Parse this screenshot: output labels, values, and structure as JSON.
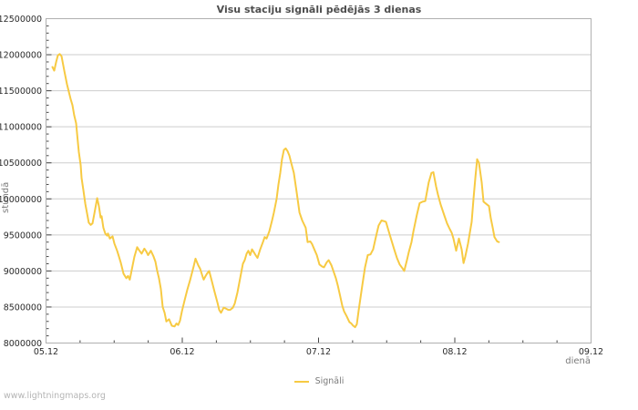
{
  "title": "Visu staciju signāli pēdējās 3 dienas",
  "watermark": "www.lightningmaps.org",
  "legend": {
    "label": "Signāli"
  },
  "axes": {
    "x_label": "dienā",
    "y_label": "stundā"
  },
  "colors": {
    "line": "#F7CA43",
    "grid": "#cdcdcd",
    "border": "#b0b0b0",
    "tick": "#444444",
    "tick_label": "#2b2b2b",
    "title": "#4d4d4d",
    "axis_unit": "#7a7a7a",
    "legend_text": "#7a7a7a",
    "watermark": "#b5b5b5",
    "background": "#ffffff"
  },
  "chart_data": {
    "type": "line",
    "title": "Visu staciju signāli pēdējās 3 dienas",
    "xlabel": "dienā",
    "ylabel": "stundā",
    "grid": "horizontal-only",
    "legend_position": "bottom-center",
    "xlim": [
      0,
      4
    ],
    "ylim": [
      8000000,
      12500000
    ],
    "y_major_step": 500000,
    "y_minor_step": 100000,
    "x_minor_step_days": 0.25,
    "x_major_ticks": [
      {
        "t": 0,
        "label": "05.12"
      },
      {
        "t": 1,
        "label": "06.12"
      },
      {
        "t": 2,
        "label": "07.12"
      },
      {
        "t": 3,
        "label": "08.12"
      },
      {
        "t": 4,
        "label": "09.12"
      }
    ],
    "y_tick_labels": [
      "8000000",
      "8500000",
      "9000000",
      "9500000",
      "10000000",
      "10500000",
      "11000000",
      "11500000",
      "12000000",
      "12500000"
    ],
    "series": [
      {
        "name": "Signāli",
        "color": "#F7CA43",
        "x_unit": "days after 05.12",
        "value_unit": "millions",
        "points": [
          [
            0.047,
            11.83
          ],
          [
            0.06,
            11.78
          ],
          [
            0.074,
            11.9
          ],
          [
            0.087,
            11.99
          ],
          [
            0.1,
            12.01
          ],
          [
            0.114,
            11.98
          ],
          [
            0.134,
            11.78
          ],
          [
            0.154,
            11.59
          ],
          [
            0.181,
            11.38
          ],
          [
            0.194,
            11.3
          ],
          [
            0.207,
            11.16
          ],
          [
            0.221,
            11.05
          ],
          [
            0.234,
            10.78
          ],
          [
            0.241,
            10.65
          ],
          [
            0.254,
            10.47
          ],
          [
            0.261,
            10.29
          ],
          [
            0.274,
            10.12
          ],
          [
            0.288,
            9.93
          ],
          [
            0.301,
            9.8
          ],
          [
            0.314,
            9.67
          ],
          [
            0.328,
            9.64
          ],
          [
            0.341,
            9.66
          ],
          [
            0.355,
            9.8
          ],
          [
            0.375,
            10.01
          ],
          [
            0.388,
            9.9
          ],
          [
            0.401,
            9.74
          ],
          [
            0.408,
            9.76
          ],
          [
            0.421,
            9.6
          ],
          [
            0.435,
            9.52
          ],
          [
            0.448,
            9.49
          ],
          [
            0.455,
            9.52
          ],
          [
            0.468,
            9.45
          ],
          [
            0.488,
            9.48
          ],
          [
            0.502,
            9.38
          ],
          [
            0.522,
            9.28
          ],
          [
            0.535,
            9.2
          ],
          [
            0.548,
            9.12
          ],
          [
            0.569,
            8.96
          ],
          [
            0.589,
            8.9
          ],
          [
            0.602,
            8.93
          ],
          [
            0.615,
            8.88
          ],
          [
            0.635,
            9.07
          ],
          [
            0.649,
            9.2
          ],
          [
            0.669,
            9.33
          ],
          [
            0.682,
            9.29
          ],
          [
            0.702,
            9.24
          ],
          [
            0.722,
            9.31
          ],
          [
            0.736,
            9.27
          ],
          [
            0.749,
            9.22
          ],
          [
            0.769,
            9.28
          ],
          [
            0.789,
            9.2
          ],
          [
            0.803,
            9.13
          ],
          [
            0.816,
            9.0
          ],
          [
            0.829,
            8.9
          ],
          [
            0.843,
            8.75
          ],
          [
            0.856,
            8.5
          ],
          [
            0.87,
            8.42
          ],
          [
            0.883,
            8.3
          ],
          [
            0.903,
            8.33
          ],
          [
            0.923,
            8.24
          ],
          [
            0.943,
            8.23
          ],
          [
            0.957,
            8.27
          ],
          [
            0.97,
            8.25
          ],
          [
            0.983,
            8.31
          ],
          [
            0.997,
            8.44
          ],
          [
            1.017,
            8.59
          ],
          [
            1.037,
            8.74
          ],
          [
            1.057,
            8.87
          ],
          [
            1.084,
            9.07
          ],
          [
            1.097,
            9.17
          ],
          [
            1.117,
            9.08
          ],
          [
            1.131,
            9.03
          ],
          [
            1.151,
            8.91
          ],
          [
            1.157,
            8.88
          ],
          [
            1.171,
            8.93
          ],
          [
            1.184,
            8.97
          ],
          [
            1.197,
            9.0
          ],
          [
            1.217,
            8.86
          ],
          [
            1.237,
            8.71
          ],
          [
            1.258,
            8.56
          ],
          [
            1.271,
            8.46
          ],
          [
            1.284,
            8.42
          ],
          [
            1.304,
            8.49
          ],
          [
            1.318,
            8.48
          ],
          [
            1.338,
            8.46
          ],
          [
            1.351,
            8.46
          ],
          [
            1.371,
            8.49
          ],
          [
            1.385,
            8.55
          ],
          [
            1.405,
            8.7
          ],
          [
            1.425,
            8.9
          ],
          [
            1.445,
            9.1
          ],
          [
            1.458,
            9.15
          ],
          [
            1.472,
            9.24
          ],
          [
            1.485,
            9.28
          ],
          [
            1.498,
            9.22
          ],
          [
            1.512,
            9.3
          ],
          [
            1.525,
            9.26
          ],
          [
            1.538,
            9.22
          ],
          [
            1.552,
            9.18
          ],
          [
            1.572,
            9.3
          ],
          [
            1.592,
            9.4
          ],
          [
            1.605,
            9.47
          ],
          [
            1.619,
            9.45
          ],
          [
            1.639,
            9.55
          ],
          [
            1.659,
            9.7
          ],
          [
            1.672,
            9.81
          ],
          [
            1.692,
            10.0
          ],
          [
            1.706,
            10.2
          ],
          [
            1.719,
            10.36
          ],
          [
            1.732,
            10.55
          ],
          [
            1.746,
            10.68
          ],
          [
            1.759,
            10.7
          ],
          [
            1.773,
            10.66
          ],
          [
            1.786,
            10.6
          ],
          [
            1.799,
            10.5
          ],
          [
            1.819,
            10.36
          ],
          [
            1.839,
            10.1
          ],
          [
            1.86,
            9.81
          ],
          [
            1.88,
            9.7
          ],
          [
            1.893,
            9.65
          ],
          [
            1.906,
            9.6
          ],
          [
            1.92,
            9.4
          ],
          [
            1.94,
            9.41
          ],
          [
            1.953,
            9.37
          ],
          [
            1.973,
            9.28
          ],
          [
            1.987,
            9.22
          ],
          [
            2.007,
            9.09
          ],
          [
            2.027,
            9.06
          ],
          [
            2.04,
            9.05
          ],
          [
            2.06,
            9.12
          ],
          [
            2.074,
            9.15
          ],
          [
            2.094,
            9.08
          ],
          [
            2.107,
            9.01
          ],
          [
            2.127,
            8.9
          ],
          [
            2.141,
            8.8
          ],
          [
            2.161,
            8.63
          ],
          [
            2.174,
            8.52
          ],
          [
            2.187,
            8.44
          ],
          [
            2.207,
            8.37
          ],
          [
            2.227,
            8.29
          ],
          [
            2.241,
            8.27
          ],
          [
            2.254,
            8.24
          ],
          [
            2.268,
            8.22
          ],
          [
            2.281,
            8.26
          ],
          [
            2.294,
            8.45
          ],
          [
            2.321,
            8.8
          ],
          [
            2.341,
            9.05
          ],
          [
            2.361,
            9.22
          ],
          [
            2.381,
            9.23
          ],
          [
            2.401,
            9.3
          ],
          [
            2.421,
            9.47
          ],
          [
            2.441,
            9.63
          ],
          [
            2.462,
            9.7
          ],
          [
            2.482,
            9.69
          ],
          [
            2.495,
            9.68
          ],
          [
            2.515,
            9.55
          ],
          [
            2.528,
            9.47
          ],
          [
            2.555,
            9.3
          ],
          [
            2.575,
            9.18
          ],
          [
            2.595,
            9.09
          ],
          [
            2.615,
            9.04
          ],
          [
            2.629,
            9.0
          ],
          [
            2.649,
            9.15
          ],
          [
            2.662,
            9.26
          ],
          [
            2.682,
            9.4
          ],
          [
            2.696,
            9.55
          ],
          [
            2.722,
            9.78
          ],
          [
            2.742,
            9.94
          ],
          [
            2.763,
            9.96
          ],
          [
            2.783,
            9.97
          ],
          [
            2.796,
            10.1
          ],
          [
            2.809,
            10.23
          ],
          [
            2.829,
            10.36
          ],
          [
            2.843,
            10.37
          ],
          [
            2.863,
            10.17
          ],
          [
            2.876,
            10.06
          ],
          [
            2.896,
            9.92
          ],
          [
            2.923,
            9.77
          ],
          [
            2.943,
            9.66
          ],
          [
            2.963,
            9.58
          ],
          [
            2.977,
            9.53
          ],
          [
            2.99,
            9.45
          ],
          [
            3.01,
            9.28
          ],
          [
            3.03,
            9.45
          ],
          [
            3.05,
            9.3
          ],
          [
            3.064,
            9.11
          ],
          [
            3.077,
            9.2
          ],
          [
            3.097,
            9.38
          ],
          [
            3.124,
            9.68
          ],
          [
            3.137,
            10.0
          ],
          [
            3.151,
            10.3
          ],
          [
            3.164,
            10.55
          ],
          [
            3.177,
            10.5
          ],
          [
            3.197,
            10.23
          ],
          [
            3.211,
            9.96
          ],
          [
            3.231,
            9.93
          ],
          [
            3.251,
            9.9
          ],
          [
            3.264,
            9.73
          ],
          [
            3.278,
            9.6
          ],
          [
            3.291,
            9.47
          ],
          [
            3.311,
            9.41
          ],
          [
            3.324,
            9.4
          ]
        ]
      }
    ]
  }
}
